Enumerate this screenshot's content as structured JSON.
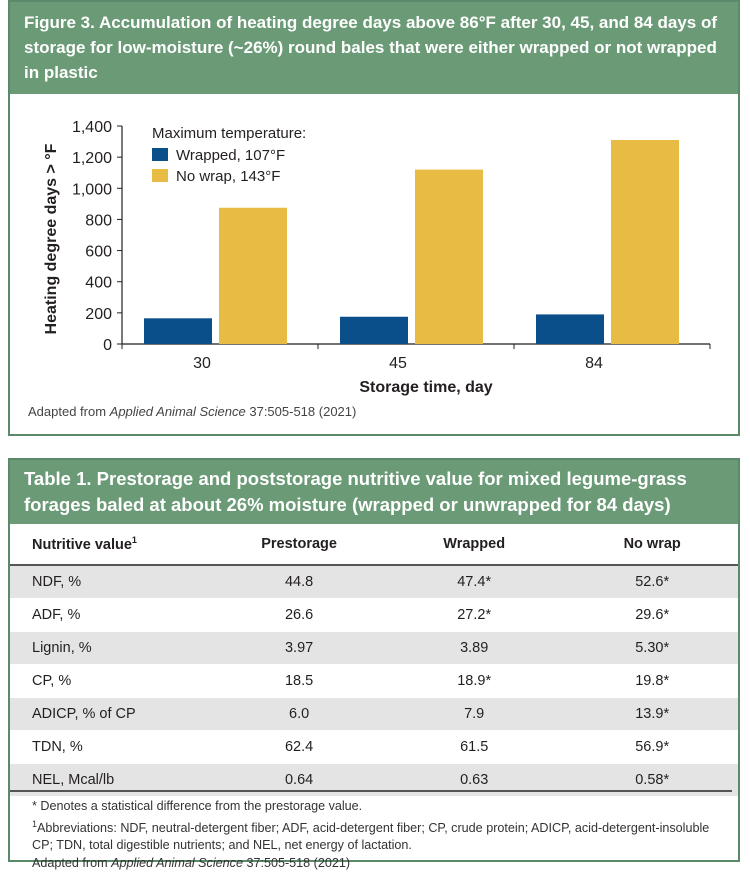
{
  "figure": {
    "title": "Figure 3. Accumulation of heating degree days above 86°F after 30, 45, and 84 days of storage for low-moisture (~26%) round bales that were either wrapped or not wrapped in plastic",
    "source_prefix": "Adapted from ",
    "source_journal": "Applied Animal Science",
    "source_suffix": " 37:505-518 (2021)"
  },
  "chart_data": {
    "type": "bar",
    "categories": [
      "30",
      "45",
      "84"
    ],
    "series": [
      {
        "name": "Wrapped, 107°F",
        "values": [
          165,
          175,
          190
        ],
        "color": "#0a4f8a"
      },
      {
        "name": "No wrap, 143°F",
        "values": [
          875,
          1120,
          1310
        ],
        "color": "#e8bb45"
      }
    ],
    "legend_title": "Maximum temperature:",
    "legend_position": "top-left",
    "xlabel": "Storage time, day",
    "ylabel": "Heating degree days > °F",
    "ylim": [
      0,
      1400
    ],
    "yticks": [
      "0",
      "200",
      "400",
      "600",
      "800",
      "1,000",
      "1,200",
      "1,400"
    ],
    "grid": false
  },
  "table": {
    "title": "Table 1. Prestorage and poststorage nutritive value for mixed legume-grass forages baled at about 26% moisture (wrapped or unwrapped for 84 days)",
    "headers": [
      "Nutritive value",
      "Prestorage",
      "Wrapped",
      "No wrap"
    ],
    "header_sup": "1",
    "rows": [
      [
        "NDF, %",
        "44.8",
        "47.4*",
        "52.6*"
      ],
      [
        "ADF, %",
        "26.6",
        "27.2*",
        "29.6*"
      ],
      [
        "Lignin, %",
        "3.97",
        "3.89",
        "5.30*"
      ],
      [
        "CP, %",
        "18.5",
        "18.9*",
        "19.8*"
      ],
      [
        "ADICP, % of CP",
        "6.0",
        "7.9",
        "13.9*"
      ],
      [
        "TDN, %",
        "62.4",
        "61.5",
        "56.9*"
      ],
      [
        "NEL, Mcal/lb",
        "0.64",
        "0.63",
        "0.58*"
      ]
    ],
    "note_star": "* Denotes a statistical difference from the prestorage value.",
    "note_abbrev_sup": "1",
    "note_abbrev": "Abbreviations: NDF, neutral-detergent fiber; ADF, acid-detergent fiber; CP, crude protein; ADICP, acid-detergent-insoluble CP; TDN, total digestible nutrients; and NEL, net energy of lactation.",
    "source_prefix": "Adapted from ",
    "source_journal": "Applied Animal Science",
    "source_suffix": " 37:505-518 (2021)"
  }
}
